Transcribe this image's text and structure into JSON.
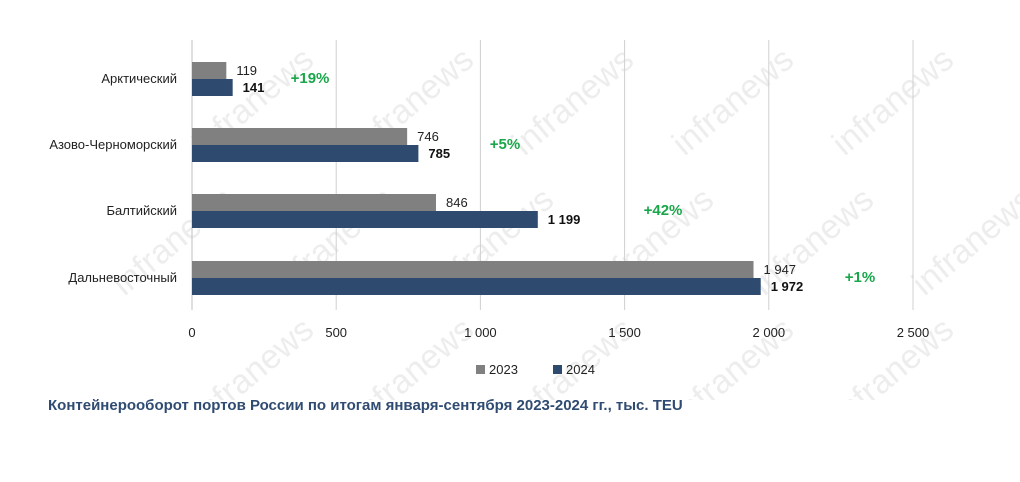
{
  "chart_data": {
    "type": "bar",
    "orientation": "horizontal",
    "categories": [
      "Арктический",
      "Азово-Черноморский",
      "Балтийский",
      "Дальневосточный"
    ],
    "series": [
      {
        "name": "2023",
        "color": "#808080",
        "values": [
          119,
          746,
          846,
          1947
        ],
        "labels": [
          "119",
          "746",
          "846",
          "1 947"
        ]
      },
      {
        "name": "2024",
        "color": "#2e4a6e",
        "values": [
          141,
          785,
          1199,
          1972
        ],
        "labels": [
          "141",
          "785",
          "1 199",
          "1 972"
        ]
      }
    ],
    "changes": [
      "+19%",
      "+5%",
      "+42%",
      "+1%"
    ],
    "change_color": "#1aa64a",
    "xlim": [
      0,
      2500
    ],
    "x_ticks": [
      0,
      500,
      1000,
      1500,
      2000,
      2500
    ],
    "x_tick_labels": [
      "0",
      "500",
      "1 000",
      "1 500",
      "2 000",
      "2 500"
    ],
    "grid": "vertical",
    "legend_position": "bottom",
    "caption": "Контейнерооборот портов России по итогам января-сентября 2023-2024 гг., тыс. TEU",
    "watermark": "infranews"
  }
}
